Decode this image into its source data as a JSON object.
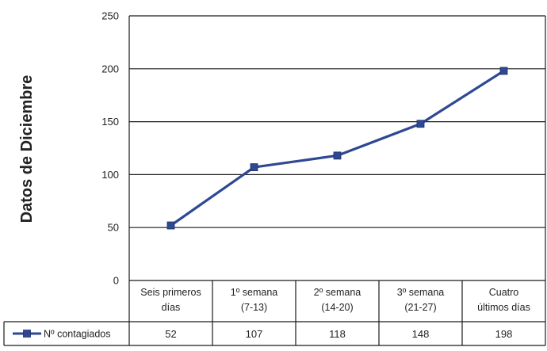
{
  "chart_data": {
    "type": "line",
    "title": "",
    "ylabel": "Datos de Diciembre",
    "xlabel": "",
    "ylim": [
      0,
      250
    ],
    "yticks": [
      0,
      50,
      100,
      150,
      200,
      250
    ],
    "grid": true,
    "categories": [
      [
        "Seis primeros",
        "días"
      ],
      [
        "1º semana",
        "(7-13)"
      ],
      [
        "2º semana",
        "(14-20)"
      ],
      [
        "3º semana",
        "(21-27)"
      ],
      [
        "Cuatro",
        "últimos días"
      ]
    ],
    "series": [
      {
        "name": "Nº contagiados",
        "values": [
          52,
          107,
          118,
          148,
          198
        ],
        "color": "#2e4893",
        "marker": "square"
      }
    ],
    "legend": "data-table-bottom-left"
  }
}
